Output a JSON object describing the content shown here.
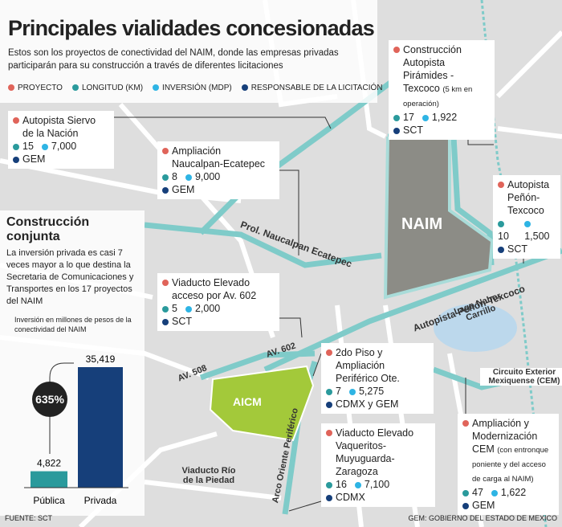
{
  "header": {
    "title": "Principales vialidades concesionadas",
    "subtitle": "Estos son los proyectos de conectividad del NAIM, donde las empresas privadas participarán para su construcción a través de diferentes licitaciones"
  },
  "legend": [
    "PROYECTO",
    "LONGITUD (KM)",
    "INVERSIÓN (MDP)",
    "RESPONSABLE DE LA LICITACIÓN"
  ],
  "projects": [
    {
      "name": "Autopista Siervo de la Nación",
      "length": "15",
      "investment": "7,000",
      "responsible": "GEM"
    },
    {
      "name": "Ampliación Naucalpan-Ecatepec",
      "length": "8",
      "investment": "9,000",
      "responsible": "GEM"
    },
    {
      "name": "Construcción Autopista Pirámides - Texcoco",
      "note": "(5 km en operación)",
      "length": "17",
      "investment": "1,922",
      "responsible": "SCT"
    },
    {
      "name": "Autopista Peñón-Texcoco",
      "length": "10",
      "investment": "1,500",
      "responsible": "SCT"
    },
    {
      "name": "Viaducto Elevado acceso por Av. 602",
      "length": "5",
      "investment": "2,000",
      "responsible": "SCT"
    },
    {
      "name": "2do Piso y Ampliación Periférico Ote.",
      "length": "7",
      "investment": "5,275",
      "responsible": "CDMX y GEM"
    },
    {
      "name": "Viaducto Elevado Vaqueritos-Muyuguarda-Zaragoza",
      "length": "16",
      "investment": "7,100",
      "responsible": "CDMX"
    },
    {
      "name": "Ampliación y Modernización CEM",
      "note": "(con entronque poniente y del acceso de carga al NAIM)",
      "length": "47",
      "investment": "1,622",
      "responsible": "GEM"
    }
  ],
  "map_labels": [
    "NAIM",
    "Prol. Naucalpan Ecatepec",
    "Autopista Peñón-Texcoco",
    "Lago Nabor Carrillo",
    "AV. 602",
    "AV. 508",
    "AICM",
    "Arco Oriente Periférico",
    "Viaducto Río de la Piedad",
    "Circuito Exterior Mexiquense (CEM)"
  ],
  "sidebar": {
    "title": "Construcción conjunta",
    "text": "La inversión privada es casi 7 veces mayor a lo que destina la Secretaria de Comunicaciones y Transportes en los 17 proyectos del NAIM",
    "note": "Inversión en millones de pesos de la conectividad del NAIM"
  },
  "chart_data": {
    "type": "bar",
    "categories": [
      "Pública",
      "Privada"
    ],
    "values": [
      4822,
      35419
    ],
    "value_labels": [
      "4,822",
      "35,419"
    ],
    "colors": [
      "#2a9a9c",
      "#163f7a"
    ],
    "annotation": "635%"
  },
  "footer": {
    "source": "FUENTE: SCT",
    "note": "GEM: GOBIERNO DEL ESTADO DE MEXICO"
  }
}
